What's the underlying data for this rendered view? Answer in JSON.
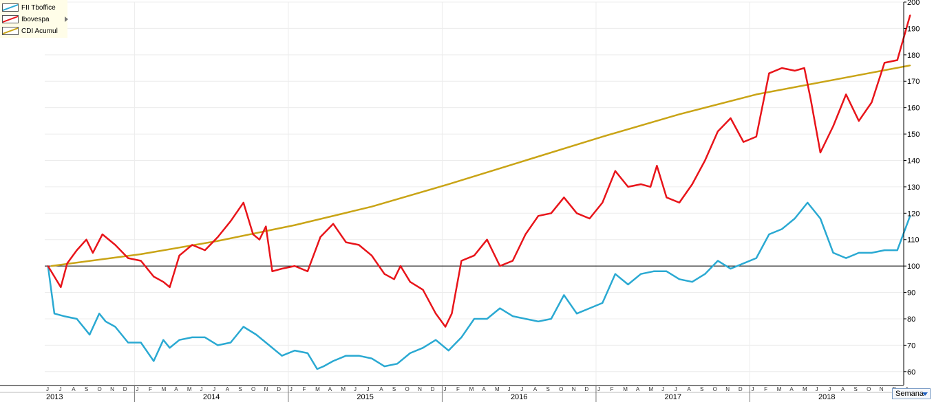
{
  "chart_data": {
    "type": "line",
    "y_tick_labels": [
      "200",
      "190",
      "180",
      "170",
      "160",
      "150",
      "140",
      "130",
      "120",
      "110",
      "100",
      "90",
      "80",
      "70",
      "60"
    ],
    "ylim": [
      55,
      200
    ],
    "baseline": 100,
    "grid": true,
    "legend_position": "top-left",
    "years": [
      "2013",
      "2014",
      "2015",
      "2016",
      "2017",
      "2018"
    ],
    "month_letters": [
      "J",
      "J",
      "A",
      "S",
      "O",
      "N",
      "D",
      "J",
      "F",
      "M",
      "A",
      "M",
      "J",
      "J",
      "A",
      "S",
      "O",
      "N",
      "D",
      "J",
      "F",
      "M",
      "A",
      "M",
      "J",
      "J",
      "A",
      "S",
      "O",
      "N",
      "D",
      "J",
      "F",
      "M",
      "A",
      "M",
      "J",
      "J",
      "A",
      "S",
      "O",
      "N",
      "D",
      "J",
      "F",
      "M",
      "A",
      "M",
      "J",
      "J",
      "A",
      "S",
      "O",
      "N",
      "D",
      "J",
      "F",
      "M",
      "A",
      "M",
      "J",
      "J",
      "A",
      "S",
      "O",
      "N",
      "D",
      "J"
    ],
    "x_start": "2013-06",
    "x_end": "2019-01",
    "series": [
      {
        "name": "FII Tboffice",
        "color": "#2aa9d2",
        "x": [
          "2013-06",
          "2013-06",
          "2013-07",
          "2013-08",
          "2013-09",
          "2013-10",
          "2013-10",
          "2013-11",
          "2013-12",
          "2014-01",
          "2014-02",
          "2014-03",
          "2014-03",
          "2014-04",
          "2014-05",
          "2014-06",
          "2014-07",
          "2014-08",
          "2014-09",
          "2014-10",
          "2014-11",
          "2014-12",
          "2015-01",
          "2015-02",
          "2015-03",
          "2015-03",
          "2015-04",
          "2015-05",
          "2015-06",
          "2015-07",
          "2015-08",
          "2015-09",
          "2015-10",
          "2015-11",
          "2015-12",
          "2016-01",
          "2016-02",
          "2016-03",
          "2016-04",
          "2016-05",
          "2016-06",
          "2016-07",
          "2016-08",
          "2016-09",
          "2016-10",
          "2016-11",
          "2016-12",
          "2017-01",
          "2017-02",
          "2017-03",
          "2017-04",
          "2017-05",
          "2017-06",
          "2017-07",
          "2017-08",
          "2017-09",
          "2017-10",
          "2017-11",
          "2017-12",
          "2018-01",
          "2018-02",
          "2018-03",
          "2018-04",
          "2018-05",
          "2018-06",
          "2018-07",
          "2018-08",
          "2018-09",
          "2018-10",
          "2018-11",
          "2018-12",
          "2019-01"
        ],
        "values": [
          100,
          82,
          81,
          80,
          74,
          82,
          79,
          77,
          71,
          71,
          64,
          72,
          69,
          72,
          73,
          73,
          70,
          71,
          77,
          74,
          70,
          66,
          68,
          67,
          61,
          62,
          64,
          66,
          66,
          65,
          62,
          63,
          67,
          69,
          72,
          68,
          73,
          80,
          80,
          84,
          81,
          80,
          79,
          80,
          89,
          82,
          84,
          86,
          97,
          93,
          97,
          98,
          98,
          95,
          94,
          97,
          102,
          99,
          101,
          103,
          112,
          114,
          118,
          124,
          118,
          105,
          103,
          105,
          105,
          106,
          106,
          119
        ]
      },
      {
        "name": "Ibovespa",
        "color": "#e8141a",
        "x": [
          "2013-06",
          "2013-06",
          "2013-07",
          "2013-07",
          "2013-08",
          "2013-09",
          "2013-09",
          "2013-10",
          "2013-11",
          "2013-12",
          "2014-01",
          "2014-02",
          "2014-03",
          "2014-03",
          "2014-04",
          "2014-05",
          "2014-06",
          "2014-07",
          "2014-08",
          "2014-09",
          "2014-10",
          "2014-10",
          "2014-11",
          "2014-11",
          "2014-12",
          "2015-01",
          "2015-02",
          "2015-03",
          "2015-04",
          "2015-05",
          "2015-06",
          "2015-07",
          "2015-08",
          "2015-09",
          "2015-09",
          "2015-10",
          "2015-11",
          "2015-12",
          "2016-01",
          "2016-01",
          "2016-02",
          "2016-03",
          "2016-04",
          "2016-05",
          "2016-06",
          "2016-07",
          "2016-08",
          "2016-09",
          "2016-10",
          "2016-11",
          "2016-12",
          "2017-01",
          "2017-02",
          "2017-03",
          "2017-04",
          "2017-05",
          "2017-05",
          "2017-06",
          "2017-07",
          "2017-08",
          "2017-09",
          "2017-10",
          "2017-11",
          "2017-12",
          "2018-01",
          "2018-02",
          "2018-03",
          "2018-04",
          "2018-05",
          "2018-05",
          "2018-06",
          "2018-07",
          "2018-08",
          "2018-09",
          "2018-10",
          "2018-11",
          "2018-12",
          "2019-01"
        ],
        "values": [
          100,
          96,
          92,
          101,
          106,
          110,
          105,
          112,
          108,
          103,
          102,
          96,
          94,
          92,
          104,
          108,
          106,
          111,
          117,
          124,
          112,
          110,
          115,
          98,
          99,
          100,
          98,
          111,
          116,
          109,
          108,
          104,
          97,
          95,
          100,
          94,
          91,
          82,
          77,
          82,
          102,
          104,
          110,
          100,
          102,
          112,
          119,
          120,
          126,
          120,
          118,
          124,
          136,
          130,
          131,
          130,
          138,
          126,
          124,
          131,
          140,
          151,
          156,
          147,
          149,
          173,
          175,
          174,
          175,
          163,
          143,
          153,
          165,
          155,
          162,
          177,
          178,
          195
        ]
      },
      {
        "name": "CDI Acumul",
        "color": "#c9a416",
        "x": [
          "2013-06",
          "2014-01",
          "2014-07",
          "2015-01",
          "2015-07",
          "2016-01",
          "2016-07",
          "2017-01",
          "2017-07",
          "2018-01",
          "2018-07",
          "2019-01"
        ],
        "values": [
          100,
          104.5,
          109.5,
          115.5,
          122.5,
          131.0,
          140.0,
          149.0,
          157.5,
          165.0,
          170.5,
          176.0
        ]
      }
    ],
    "period_selector": "Semana"
  }
}
